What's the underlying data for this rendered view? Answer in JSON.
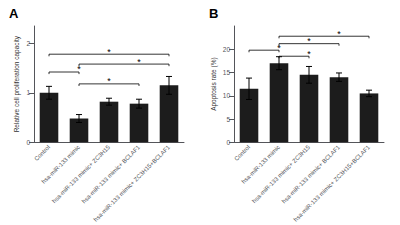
{
  "chart_data": [
    {
      "type": "bar",
      "title": "A",
      "ylabel": "Relative cell proliferation capacity",
      "categories": [
        "Control",
        "hsa-miR-133 mimic",
        "hsa-miR-133 mimic+ ZC3H15",
        "hsa-miR-133 mimic+ BCLAF1",
        "hsa-miR-133 mimic+ ZC3H15+BCLAF1"
      ],
      "values": [
        1.0,
        0.48,
        0.82,
        0.78,
        1.15
      ],
      "errors": [
        0.13,
        0.08,
        0.07,
        0.09,
        0.18
      ],
      "color": "#1c1c1c",
      "ylim": [
        0,
        2.35
      ],
      "yticks": [
        0,
        1,
        2
      ],
      "grid": false,
      "annotations": [
        {
          "text": "*",
          "x1": "Control",
          "x2": "hsa-miR-133 mimic",
          "y": 1.42
        },
        {
          "text": "*",
          "x1": "hsa-miR-133 mimic",
          "x2": "hsa-miR-133 mimic+ BCLAF1",
          "y": 1.18
        },
        {
          "text": "*",
          "x1": "hsa-miR-133 mimic",
          "x2": "hsa-miR-133 mimic+ ZC3H15+BCLAF1",
          "y": 1.58
        },
        {
          "text": "*",
          "x1": "Control",
          "x2": "hsa-miR-133 mimic+ ZC3H15+BCLAF1",
          "y": 1.78
        }
      ]
    },
    {
      "type": "bar",
      "title": "B",
      "ylabel": "Apoptosis rate (%)",
      "categories": [
        "Control",
        "hsa-miR-133 mimic",
        "hsa-miR-133 mimic+ ZC3H15",
        "hsa-miR-133 mimic+ BCLAF1",
        "hsa-miR-133 mimic+ ZC3H15+BCLAF1"
      ],
      "values": [
        11.5,
        17.0,
        14.5,
        14.0,
        10.5
      ],
      "errors": [
        2.3,
        1.4,
        1.8,
        0.9,
        0.7
      ],
      "color": "#1c1c1c",
      "ylim": [
        0,
        25
      ],
      "yticks": [
        0,
        5,
        10,
        15,
        20
      ],
      "grid": false,
      "annotations": [
        {
          "text": "*",
          "x1": "Control",
          "x2": "hsa-miR-133 mimic",
          "y": 19.8
        },
        {
          "text": "*",
          "x1": "hsa-miR-133 mimic",
          "x2": "hsa-miR-133 mimic+ ZC3H15",
          "y": 18.5
        },
        {
          "text": "*",
          "x1": "hsa-miR-133 mimic",
          "x2": "hsa-miR-133 mimic+ BCLAF1",
          "y": 21.2
        },
        {
          "text": "*",
          "x1": "hsa-miR-133 mimic",
          "x2": "hsa-miR-133 mimic+ ZC3H15+BCLAF1",
          "y": 22.8
        }
      ]
    }
  ]
}
